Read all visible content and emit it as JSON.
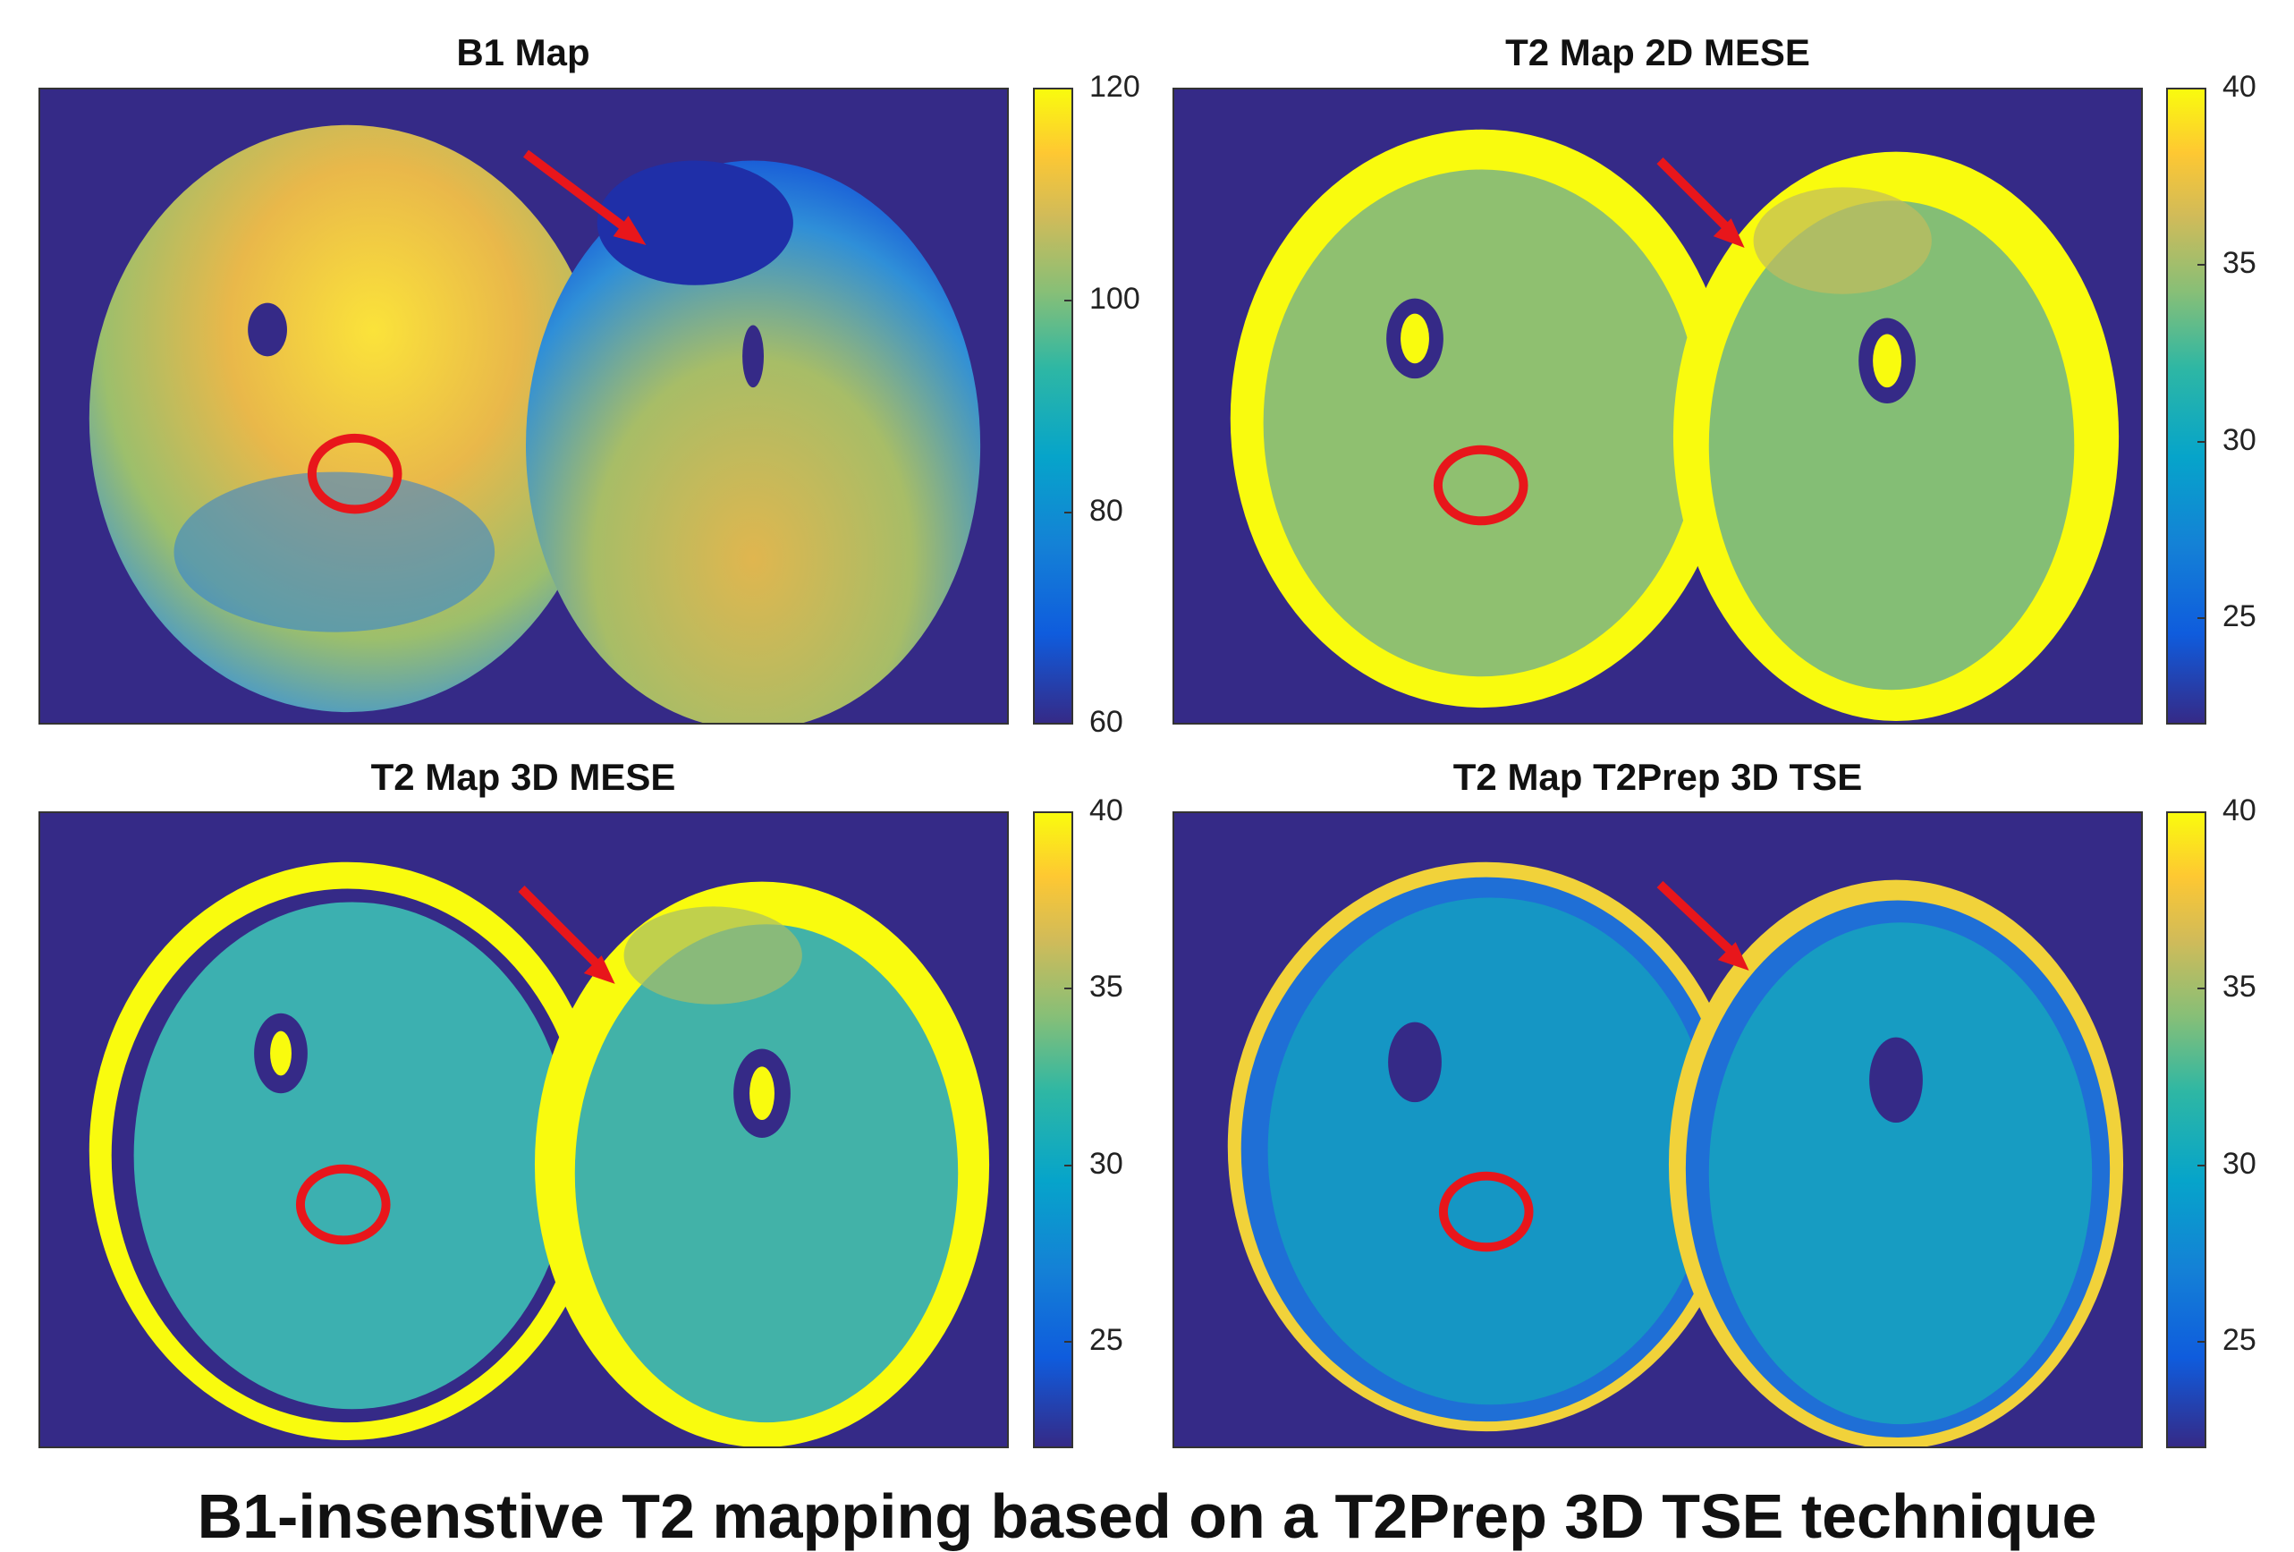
{
  "caption": "B1-insenstive T2 mapping based on a T2Prep 3D TSE technique",
  "colors": {
    "background_field": "#352a87",
    "annotation_red": "#e8161b",
    "colormap": "parula"
  },
  "panels": [
    {
      "id": "b1-map",
      "title": "B1 Map",
      "colorbar": {
        "min": 60,
        "max": 120,
        "ticks": [
          "120",
          "100",
          "80",
          "60"
        ],
        "tick_values": [
          120,
          100,
          80,
          60
        ]
      },
      "annotations": [
        "red-arrow",
        "red-circle-roi"
      ]
    },
    {
      "id": "t2-2d-mese",
      "title": "T2 Map 2D MESE",
      "colorbar": {
        "min": 22,
        "max": 40,
        "ticks": [
          "40",
          "35",
          "30",
          "25"
        ],
        "tick_values": [
          40,
          35,
          30,
          25
        ]
      },
      "annotations": [
        "red-arrow",
        "red-circle-roi"
      ]
    },
    {
      "id": "t2-3d-mese",
      "title": "T2 Map 3D MESE",
      "colorbar": {
        "min": 22,
        "max": 40,
        "ticks": [
          "40",
          "35",
          "30",
          "25"
        ],
        "tick_values": [
          40,
          35,
          30,
          25
        ]
      },
      "annotations": [
        "red-arrow",
        "red-circle-roi"
      ]
    },
    {
      "id": "t2-t2prep-3d-tse",
      "title": "T2 Map T2Prep 3D TSE",
      "colorbar": {
        "min": 22,
        "max": 40,
        "ticks": [
          "40",
          "35",
          "30",
          "25"
        ],
        "tick_values": [
          40,
          35,
          30,
          25
        ]
      },
      "annotations": [
        "red-arrow",
        "red-circle-roi"
      ]
    }
  ]
}
